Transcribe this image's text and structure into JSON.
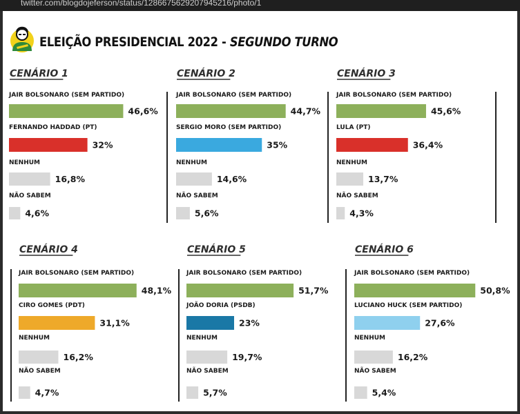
{
  "browser": {
    "url": "twitter.com/blogdojeferson/status/1286675629207945216/photo/1"
  },
  "header": {
    "title_main": "ELEIÇÃO PRESIDENCIAL 2022 - ",
    "title_turno": "SEGUNDO TURNO"
  },
  "colors": {
    "bolsonaro": "#8db05b",
    "haddad": "#d9302a",
    "moro": "#3aa9df",
    "lula": "#d9302a",
    "ciro": "#eea92a",
    "doria": "#1a78a6",
    "huck": "#8fd0ee",
    "other": "#d8d8d8"
  },
  "chart_data": [
    {
      "type": "bar",
      "title": "CENÁRIO 1",
      "categories": [
        "JAIR BOLSONARO (SEM PARTIDO)",
        "FERNANDO HADDAD (PT)",
        "NENHUM",
        "NÃO SABEM"
      ],
      "values": [
        46.6,
        32,
        16.8,
        4.6
      ],
      "value_labels": [
        "46,6%",
        "32%",
        "16,8%",
        "4,6%"
      ],
      "colors": [
        "#8db05b",
        "#d9302a",
        "#d8d8d8",
        "#d8d8d8"
      ]
    },
    {
      "type": "bar",
      "title": "CENÁRIO 2",
      "categories": [
        "JAIR BOLSONARO (SEM PARTIDO)",
        "SERGIO MORO (SEM PARTIDO)",
        "NENHUM",
        "NÃO SABEM"
      ],
      "values": [
        44.7,
        35,
        14.6,
        5.6
      ],
      "value_labels": [
        "44,7%",
        "35%",
        "14,6%",
        "5,6%"
      ],
      "colors": [
        "#8db05b",
        "#3aa9df",
        "#d8d8d8",
        "#d8d8d8"
      ]
    },
    {
      "type": "bar",
      "title": "CENÁRIO 3",
      "categories": [
        "JAIR BOLSONARO (SEM PARTIDO)",
        "LULA (PT)",
        "NENHUM",
        "NÃO SABEM"
      ],
      "values": [
        45.6,
        36.4,
        13.7,
        4.3
      ],
      "value_labels": [
        "45,6%",
        "36,4%",
        "13,7%",
        "4,3%"
      ],
      "colors": [
        "#8db05b",
        "#d9302a",
        "#d8d8d8",
        "#d8d8d8"
      ]
    },
    {
      "type": "bar",
      "title": "CENÁRIO 4",
      "categories": [
        "JAIR BOLSONARO (SEM PARTIDO)",
        "CIRO GOMES (PDT)",
        "NENHUM",
        "NÃO SABEM"
      ],
      "values": [
        48.1,
        31.1,
        16.2,
        4.7
      ],
      "value_labels": [
        "48,1%",
        "31,1%",
        "16,2%",
        "4,7%"
      ],
      "colors": [
        "#8db05b",
        "#eea92a",
        "#d8d8d8",
        "#d8d8d8"
      ]
    },
    {
      "type": "bar",
      "title": "CENÁRIO 5",
      "categories": [
        "JAIR BOLSONARO (SEM PARTIDO)",
        "JOÃO DORIA (PSDB)",
        "NENHUM",
        "NÃO SABEM"
      ],
      "values": [
        51.7,
        23,
        19.7,
        5.7
      ],
      "value_labels": [
        "51,7%",
        "23%",
        "19,7%",
        "5,7%"
      ],
      "colors": [
        "#8db05b",
        "#1a78a6",
        "#d8d8d8",
        "#d8d8d8"
      ]
    },
    {
      "type": "bar",
      "title": "CENÁRIO 6",
      "categories": [
        "JAIR BOLSONARO (SEM PARTIDO)",
        "LUCIANO HUCK (SEM PARTIDO)",
        "NENHUM",
        "NÃO SABEM"
      ],
      "values": [
        50.8,
        27.6,
        16.2,
        5.4
      ],
      "value_labels": [
        "50,8%",
        "27,6%",
        "16,2%",
        "5,4%"
      ],
      "colors": [
        "#8db05b",
        "#8fd0ee",
        "#d8d8d8",
        "#d8d8d8"
      ]
    }
  ]
}
